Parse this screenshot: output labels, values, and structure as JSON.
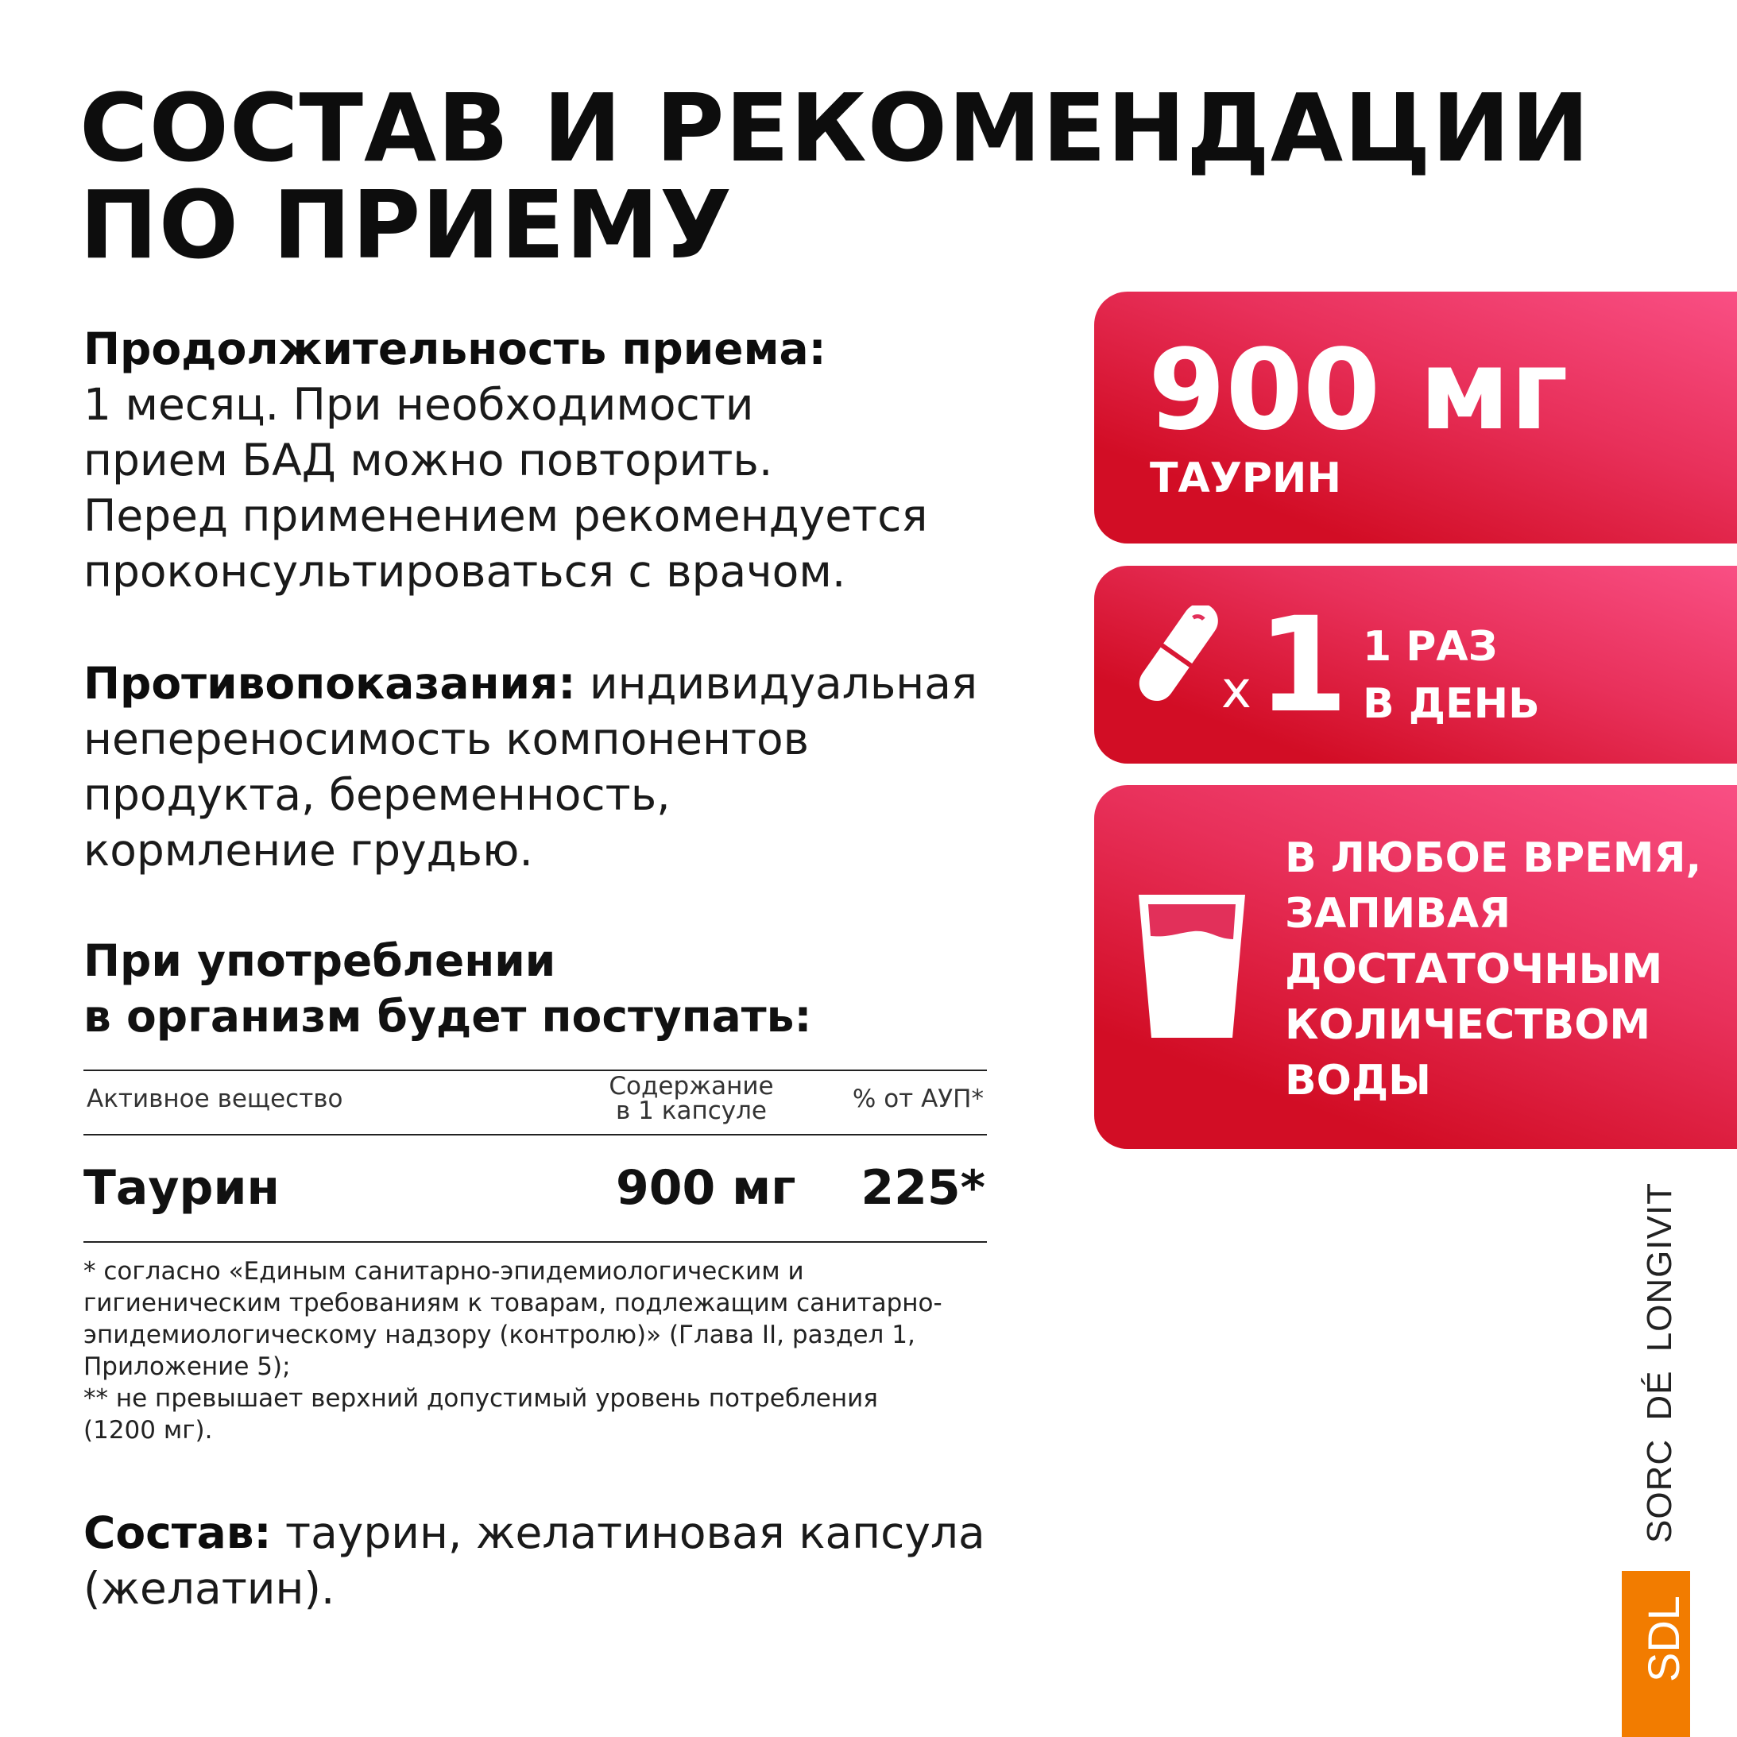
{
  "title": {
    "line1": "СОСТАВ И РЕКОМЕНДАЦИИ",
    "line2": "ПО ПРИЕМУ"
  },
  "duration": {
    "label": "Продолжительность приема:",
    "lines": [
      "1 месяц. При необходимости",
      "прием БАД можно повторить.",
      "Перед применением рекомендуется",
      "проконсультироваться с врачом."
    ]
  },
  "contra": {
    "label": "Противопоказания:",
    "first": " индивидуальная",
    "lines": [
      "непереносимость компонентов",
      "продукта, беременность,",
      "кормление грудью."
    ]
  },
  "intake": {
    "line1": "При употреблении",
    "line2": "в организм будет поступать:"
  },
  "table": {
    "headers": {
      "substance": "Активное вещество",
      "content1": "Содержание",
      "content2": "в 1 капсуле",
      "percent": "% от АУП*"
    },
    "rows": [
      {
        "substance": "Таурин",
        "content": "900 мг",
        "percent": "225*"
      }
    ]
  },
  "footnotes": [
    "* согласно «Единым санитарно-эпидемиологическим и",
    "гигиеническим требованиям к товарам, подлежащим санитарно-",
    "эпидемиологическому надзору (контролю)» (Глава II, раздел 1,",
    "Приложение 5);",
    "** не превышает верхний допустимый уровень потребления",
    "(1200 мг)."
  ],
  "composition": {
    "label": "Состав:",
    "first": " таурин, желатиновая капсула",
    "line2": "(желатин)."
  },
  "cards": {
    "dose": {
      "value": "900 мг",
      "label": "ТАУРИН"
    },
    "frequency": {
      "x": "x",
      "count": "1",
      "line1": "1 РАЗ",
      "line2": "В ДЕНЬ",
      "icon": "capsule-icon"
    },
    "water": {
      "icon": "glass-icon",
      "lines": [
        "В ЛЮБОЕ ВРЕМЯ,",
        "ЗАПИВАЯ",
        "ДОСТАТОЧНЫМ",
        "КОЛИЧЕСТВОМ",
        "ВОДЫ"
      ]
    }
  },
  "brand": {
    "name": "SORC DÉ LONGIVIT",
    "logo": "SDL",
    "logo_color": "#f27c00"
  },
  "colors": {
    "card_light": "#f94f84",
    "card_dark": "#d20d25"
  }
}
